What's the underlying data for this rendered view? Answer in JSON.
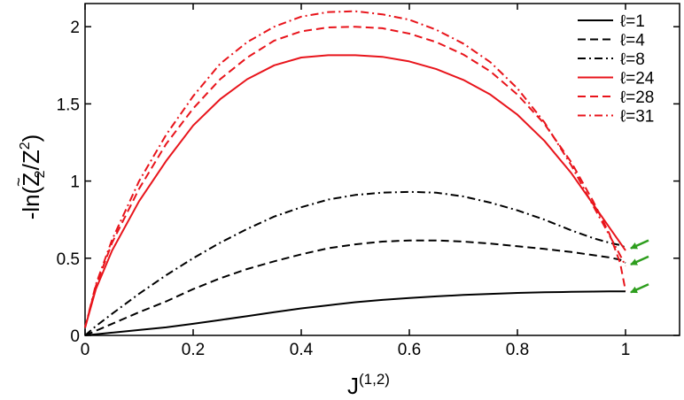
{
  "chart_data": {
    "type": "line",
    "xlabel": "J",
    "xlabel_superscript": "(1,2)",
    "ylabel_parts": [
      "-ln(",
      "Z",
      "~",
      "2",
      "/Z",
      "2",
      ")"
    ],
    "xlim": [
      0,
      1.1
    ],
    "ylim": [
      0,
      2.15
    ],
    "xticks": [
      0,
      0.2,
      0.4,
      0.6,
      0.8,
      1
    ],
    "xtick_labels": [
      "0",
      "0.2",
      "0.4",
      "0.6",
      "0.8",
      "1"
    ],
    "yticks": [
      0,
      0.5,
      1,
      1.5,
      2
    ],
    "ytick_labels": [
      "0",
      "0.5",
      "1",
      "1.5",
      "2"
    ],
    "grid": false,
    "legend_position": "top-right",
    "x": [
      0,
      0.02,
      0.05,
      0.1,
      0.15,
      0.2,
      0.25,
      0.3,
      0.35,
      0.4,
      0.45,
      0.5,
      0.55,
      0.6,
      0.65,
      0.7,
      0.75,
      0.8,
      0.85,
      0.9,
      0.94,
      0.97,
      0.99,
      1.0
    ],
    "series": [
      {
        "name": "ℓ=1",
        "color": "#000000",
        "dash": "solid",
        "values": [
          0,
          0.007,
          0.018,
          0.035,
          0.052,
          0.075,
          0.1,
          0.125,
          0.15,
          0.175,
          0.195,
          0.215,
          0.23,
          0.242,
          0.253,
          0.262,
          0.269,
          0.275,
          0.279,
          0.282,
          0.284,
          0.285,
          0.285,
          0.285
        ]
      },
      {
        "name": "ℓ=4",
        "color": "#000000",
        "dash": "dash",
        "values": [
          0,
          0.03,
          0.075,
          0.15,
          0.22,
          0.3,
          0.37,
          0.43,
          0.48,
          0.525,
          0.565,
          0.59,
          0.608,
          0.615,
          0.615,
          0.608,
          0.595,
          0.578,
          0.56,
          0.54,
          0.52,
          0.505,
          0.49,
          0.47
        ]
      },
      {
        "name": "ℓ=8",
        "color": "#000000",
        "dash": "dashdot",
        "values": [
          0,
          0.06,
          0.14,
          0.27,
          0.39,
          0.5,
          0.6,
          0.69,
          0.77,
          0.83,
          0.88,
          0.91,
          0.925,
          0.93,
          0.925,
          0.9,
          0.86,
          0.81,
          0.75,
          0.68,
          0.63,
          0.6,
          0.585,
          0.57
        ]
      },
      {
        "name": "ℓ=24",
        "color": "#e8141b",
        "dash": "solid",
        "values": [
          0.05,
          0.3,
          0.55,
          0.87,
          1.13,
          1.36,
          1.53,
          1.66,
          1.75,
          1.8,
          1.815,
          1.815,
          1.805,
          1.775,
          1.725,
          1.655,
          1.56,
          1.43,
          1.26,
          1.05,
          0.85,
          0.7,
          0.6,
          0.55
        ]
      },
      {
        "name": "ℓ=28",
        "color": "#e8141b",
        "dash": "dash",
        "values": [
          0.05,
          0.32,
          0.6,
          0.95,
          1.24,
          1.47,
          1.66,
          1.8,
          1.91,
          1.97,
          1.995,
          2.0,
          1.99,
          1.955,
          1.9,
          1.82,
          1.71,
          1.56,
          1.37,
          1.12,
          0.87,
          0.66,
          0.47,
          0.29
        ]
      },
      {
        "name": "ℓ=31",
        "color": "#e8141b",
        "dash": "dashdot",
        "values": [
          0.05,
          0.33,
          0.62,
          1.0,
          1.3,
          1.55,
          1.76,
          1.9,
          2.0,
          2.065,
          2.095,
          2.1,
          2.08,
          2.045,
          1.98,
          1.89,
          1.77,
          1.6,
          1.38,
          1.1,
          0.84,
          0.65,
          0.52,
          0.45
        ]
      }
    ],
    "annotations": [
      {
        "type": "arrow",
        "color": "#2e9e1e",
        "x": 1.0,
        "y": 0.57
      },
      {
        "type": "arrow",
        "color": "#2e9e1e",
        "x": 1.0,
        "y": 0.465
      },
      {
        "type": "arrow",
        "color": "#2e9e1e",
        "x": 1.0,
        "y": 0.285
      }
    ]
  }
}
